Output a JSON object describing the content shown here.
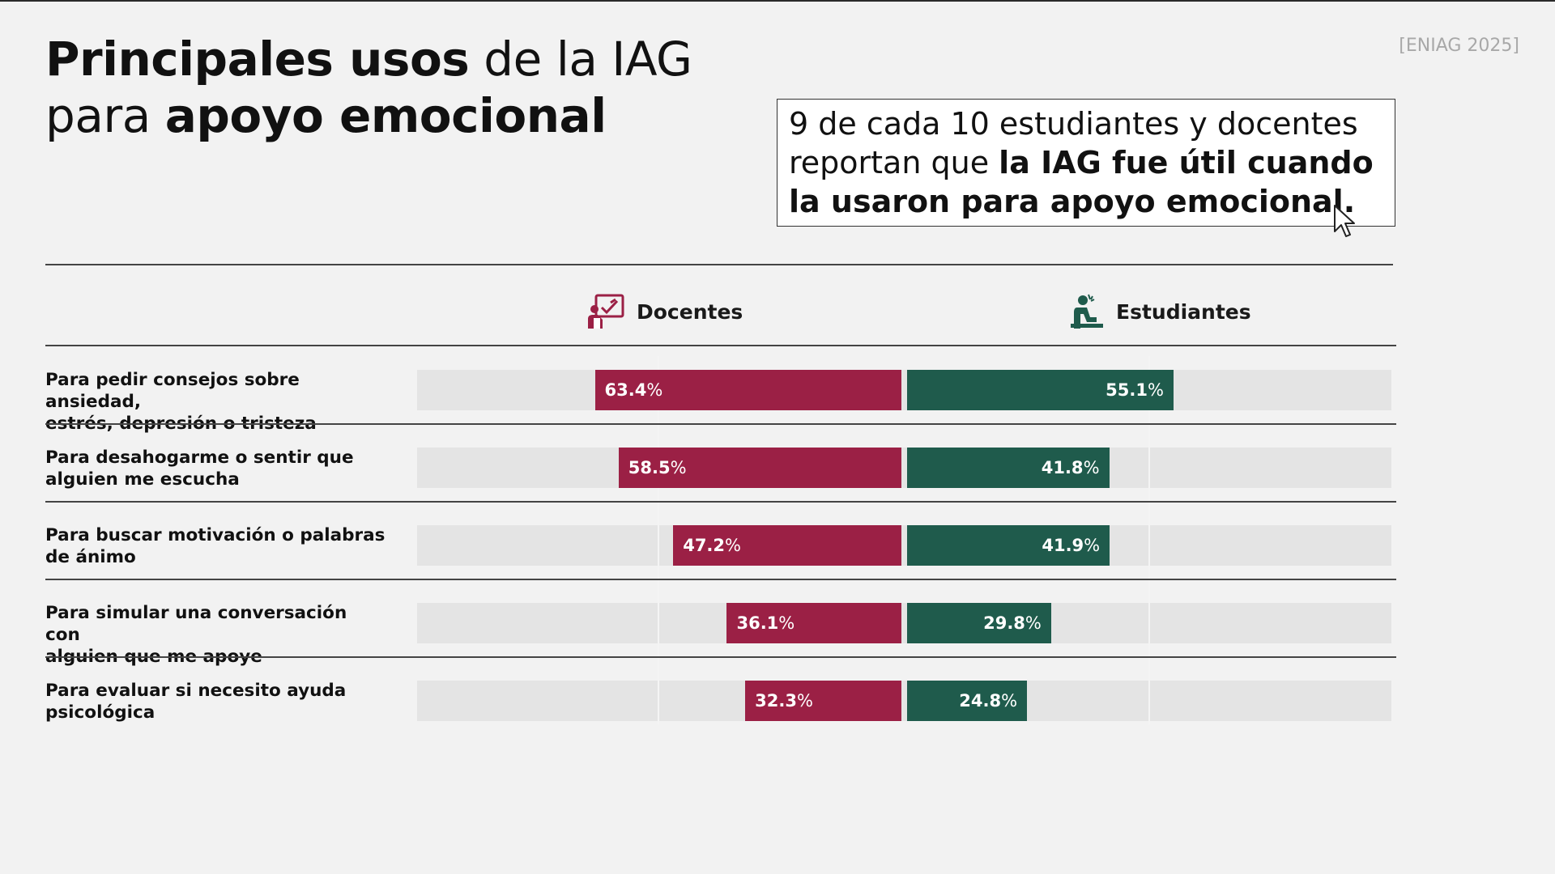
{
  "header": {
    "title_bold_1": "Principales usos",
    "title_normal_1": " de la IAG",
    "title_normal_2": "para ",
    "title_bold_2": "apoyo emocional",
    "source": "[ENIAG 2025]"
  },
  "callout": {
    "text_normal": "9 de cada 10 estudiantes y docentes reportan que ",
    "text_bold": "la IAG fue útil cuando la usaron para apoyo emocional."
  },
  "colors": {
    "docentes": "#9b2045",
    "estudiantes": "#1f5b4c",
    "track": "#e4e4e4"
  },
  "icons": {
    "docentes": "teacher-board-icon",
    "estudiantes": "student-desk-icon"
  },
  "chart_data": {
    "type": "bar",
    "orientation": "horizontal-diverging",
    "title": "",
    "categories": [
      "Para pedir consejos sobre ansiedad, estrés, depresión o tristeza",
      "Para desahogarme o sentir que alguien me escucha",
      "Para buscar motivación o palabras de ánimo",
      "Para simular una conversación con alguien que me apoye",
      "Para evaluar si necesito ayuda psicológica"
    ],
    "category_lines": [
      [
        "Para pedir consejos sobre ansiedad,",
        "estrés, depresión o tristeza"
      ],
      [
        "Para desahogarme o sentir que",
        "alguien me escucha"
      ],
      [
        "Para buscar motivación o palabras",
        "de ánimo"
      ],
      [
        "Para simular una conversación con",
        "alguien que me apoye"
      ],
      [
        "Para evaluar si necesito ayuda",
        "psicológica"
      ]
    ],
    "series": [
      {
        "name": "Docentes",
        "values": [
          63.4,
          58.5,
          47.2,
          36.1,
          32.3
        ],
        "labels": [
          "63.4",
          "58.5",
          "47.2",
          "36.1",
          "32.3"
        ]
      },
      {
        "name": "Estudiantes",
        "values": [
          55.1,
          41.8,
          41.9,
          29.8,
          24.8
        ],
        "labels": [
          "55.1",
          "41.8",
          "41.9",
          "29.8",
          "24.8"
        ]
      }
    ],
    "unit": "%",
    "xlim": [
      0,
      100
    ],
    "grid": true,
    "legend": "top"
  }
}
